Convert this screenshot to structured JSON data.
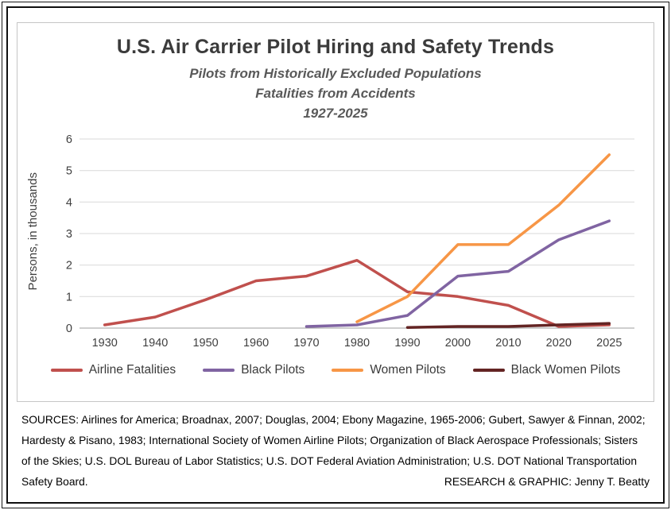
{
  "page": {
    "title": "U.S. Air Carrier Pilot Hiring and Safety Trends",
    "subtitles": [
      "Pilots from Historically Excluded Populations",
      "Fatalities from Accidents",
      "1927-2025"
    ]
  },
  "chart_data": {
    "type": "line",
    "categories": [
      "1930",
      "1940",
      "1950",
      "1960",
      "1970",
      "1980",
      "1990",
      "2000",
      "2010",
      "2020",
      "2025"
    ],
    "ylabel": "Persons, in thousands",
    "ylim": [
      0,
      6
    ],
    "yticks": [
      0,
      1,
      2,
      3,
      4,
      5,
      6
    ],
    "grid": true,
    "legend_position": "bottom",
    "series": [
      {
        "name": "Airline Fatalities",
        "color": "#c0504d",
        "values": [
          0.1,
          0.35,
          0.9,
          1.5,
          1.65,
          2.15,
          1.15,
          1.0,
          0.72,
          0.05,
          0.1
        ]
      },
      {
        "name": "Black Pilots",
        "color": "#8064a2",
        "values": [
          null,
          null,
          null,
          null,
          0.05,
          0.1,
          0.4,
          1.65,
          1.8,
          2.8,
          3.4
        ]
      },
      {
        "name": "Women Pilots",
        "color": "#f79646",
        "values": [
          null,
          null,
          null,
          null,
          null,
          0.2,
          1.0,
          2.65,
          2.65,
          3.9,
          5.5
        ]
      },
      {
        "name": "Black Women Pilots",
        "color": "#632423",
        "values": [
          null,
          null,
          null,
          null,
          null,
          null,
          0.02,
          0.05,
          0.05,
          0.1,
          0.15
        ]
      }
    ]
  },
  "footer": {
    "sources": "SOURCES: Airlines for America; Broadnax, 2007; Douglas, 2004; Ebony Magazine, 1965-2006; Gubert, Sawyer & Finnan, 2002; Hardesty & Pisano, 1983; International Society of Women Airline Pilots; Organization of Black Aerospace Professionals; Sisters of the Skies; U.S. DOL Bureau of Labor Statistics; U.S. DOT Federal Aviation Administration; U.S. DOT National Transportation Safety Board.",
    "credit": "RESEARCH & GRAPHIC: Jenny T. Beatty"
  }
}
